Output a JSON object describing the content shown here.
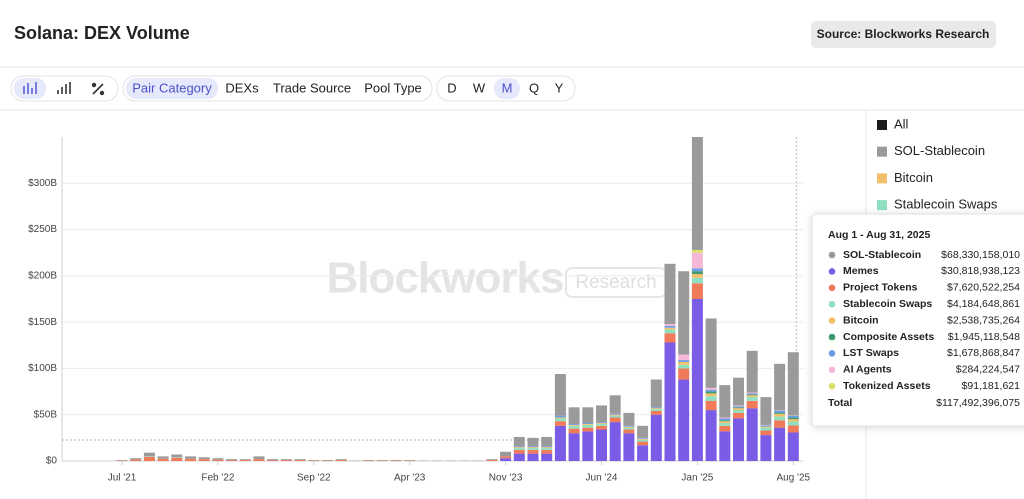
{
  "header": {
    "title": "Solana: DEX Volume",
    "source": "Source: Blockworks Research"
  },
  "toolbar": {
    "groupings": [
      "Pair Category",
      "DEXs",
      "Trade Source",
      "Pool Type"
    ],
    "active_grouping": "Pair Category",
    "periods": [
      "D",
      "W",
      "M",
      "Q",
      "Y"
    ],
    "active_period": "M"
  },
  "chart_data": {
    "type": "bar",
    "stacked": true,
    "categories": [
      "Jul '21",
      null,
      null,
      null,
      null,
      null,
      null,
      "Feb '22",
      null,
      null,
      null,
      null,
      null,
      null,
      "Sep '22",
      null,
      null,
      null,
      null,
      null,
      null,
      "Apr '23",
      null,
      null,
      null,
      null,
      null,
      null,
      "Nov '23",
      null,
      null,
      null,
      null,
      null,
      null,
      "Jun '24",
      null,
      null,
      null,
      null,
      null,
      null,
      "Jan '25",
      null,
      null,
      null,
      null,
      null,
      null,
      "Aug '25"
    ],
    "ylim": [
      0,
      350
    ],
    "yticks": [
      {
        "value": 0,
        "label": "$0"
      },
      {
        "value": 50,
        "label": "$50B"
      },
      {
        "value": 100,
        "label": "$100B"
      },
      {
        "value": 150,
        "label": "$150B"
      },
      {
        "value": 200,
        "label": "$200B"
      },
      {
        "value": 250,
        "label": "$250B"
      },
      {
        "value": 300,
        "label": "$300B"
      }
    ],
    "grid": true,
    "series": [
      {
        "name": "SOL-Stablecoin",
        "color": "#9a9a9a",
        "values": [
          0.5,
          1.5,
          4,
          2.5,
          3,
          2.5,
          2,
          1.5,
          1,
          1,
          3,
          1,
          1,
          1,
          0.5,
          0.5,
          1,
          0.3,
          0.5,
          0.5,
          0.5,
          0.5,
          0.3,
          0.3,
          0.3,
          0.3,
          0.3,
          1,
          5,
          10,
          9,
          10,
          45,
          18,
          17,
          18,
          20,
          14,
          13,
          30,
          65,
          90,
          122,
          75,
          35,
          30,
          45,
          30,
          50,
          68.33015801
        ]
      },
      {
        "name": "Memes",
        "color": "#7b5ce6",
        "values": [
          0,
          0,
          0,
          0,
          0,
          0,
          0,
          0,
          0,
          0,
          0,
          0,
          0,
          0,
          0,
          0,
          0,
          0,
          0,
          0,
          0,
          0,
          0,
          0,
          0,
          0,
          0,
          0,
          3,
          8,
          8,
          8,
          38,
          30,
          32,
          34,
          42,
          30,
          17,
          50,
          128,
          88,
          175,
          55,
          32,
          46,
          57,
          28,
          36,
          30.818938123
        ]
      },
      {
        "name": "Project Tokens",
        "color": "#f07a5a",
        "values": [
          0.5,
          1.5,
          4.5,
          2.5,
          3.5,
          2.5,
          2,
          1.5,
          1,
          1,
          2,
          1,
          1,
          1,
          0.5,
          0.5,
          1,
          0.2,
          0.5,
          0.5,
          0.5,
          0.5,
          0.2,
          0.2,
          0.2,
          0.2,
          0.2,
          1,
          2,
          4,
          4,
          4,
          5,
          5,
          4,
          4,
          5,
          4,
          4,
          4,
          10,
          12,
          17,
          10,
          6,
          6,
          8,
          5,
          8,
          7.620522254
        ]
      },
      {
        "name": "Stablecoin Swaps",
        "color": "#8fe0c0",
        "values": [
          0,
          0,
          0.5,
          0,
          0.5,
          0,
          0,
          0,
          0,
          0,
          0,
          0,
          0,
          0,
          0,
          0,
          0,
          0,
          0,
          0,
          0,
          0,
          0,
          0,
          0,
          0,
          0,
          0,
          0,
          2,
          2,
          2,
          3,
          3,
          3,
          2,
          2,
          2,
          2,
          2,
          4,
          4,
          6,
          5,
          3,
          3,
          4,
          3,
          4,
          4.184648861
        ]
      },
      {
        "name": "Bitcoin",
        "color": "#f2c06a",
        "values": [
          0,
          0,
          0,
          0,
          0,
          0,
          0,
          0,
          0,
          0,
          0,
          0,
          0,
          0,
          0,
          0,
          0,
          0,
          0,
          0,
          0,
          0,
          0,
          0,
          0,
          0,
          0,
          0,
          0,
          1,
          1,
          1,
          1,
          1,
          1,
          1,
          1,
          1,
          1,
          1,
          2,
          3,
          4,
          3,
          2,
          2,
          2,
          1,
          3,
          2.538735264
        ]
      },
      {
        "name": "Composite Assets",
        "color": "#3f9a6f",
        "values": [
          0,
          0,
          0,
          0,
          0,
          0,
          0,
          0,
          0,
          0,
          0,
          0,
          0,
          0,
          0,
          0,
          0,
          0,
          0,
          0,
          0,
          0,
          0,
          0,
          0,
          0,
          0,
          0,
          0,
          0,
          0,
          0,
          0,
          0,
          0,
          0,
          0,
          0,
          0,
          0,
          0,
          0,
          3,
          2,
          1,
          1,
          1,
          0.5,
          1.5,
          1.945118548
        ]
      },
      {
        "name": "LST Swaps",
        "color": "#6b9de8",
        "values": [
          0,
          0,
          0,
          0,
          0,
          0,
          0,
          0,
          0,
          0,
          0,
          0,
          0,
          0,
          0,
          0,
          0,
          0,
          0,
          0,
          0,
          0,
          0,
          0,
          0,
          0,
          0,
          0,
          0,
          1,
          1,
          1,
          2,
          1,
          1,
          1,
          1,
          1,
          1,
          1,
          2,
          2,
          3,
          2,
          2,
          1,
          1,
          1,
          2,
          1.678868847
        ]
      },
      {
        "name": "AI Agents",
        "color": "#f5b8d8",
        "values": [
          0,
          0,
          0,
          0,
          0,
          0,
          0,
          0,
          0,
          0,
          0,
          0,
          0,
          0,
          0,
          0,
          0,
          0,
          0,
          0,
          0,
          0,
          0,
          0,
          0,
          0,
          0,
          0,
          0,
          0,
          0,
          0,
          0,
          0,
          0,
          0,
          0,
          0,
          0,
          0,
          2,
          6,
          17,
          2,
          1,
          1,
          1,
          0.5,
          0.5,
          0.284224547
        ]
      },
      {
        "name": "Tokenized Assets",
        "color": "#d8e06a",
        "values": [
          0,
          0,
          0,
          0,
          0,
          0,
          0,
          0,
          0,
          0,
          0,
          0,
          0,
          0,
          0,
          0,
          0,
          0,
          0,
          0,
          0,
          0,
          0,
          0,
          0,
          0,
          0,
          0,
          0,
          0,
          0,
          0,
          0,
          0,
          0,
          0,
          0,
          0,
          0,
          0,
          0,
          0,
          3,
          0,
          0,
          0,
          0,
          0,
          0,
          0.091181621
        ]
      }
    ],
    "legend_items": [
      {
        "label": "All",
        "color": "#1a1a1a"
      },
      {
        "label": "SOL-Stablecoin",
        "color": "#9a9a9a"
      },
      {
        "label": "Bitcoin",
        "color": "#f2c06a"
      },
      {
        "label": "Stablecoin Swaps",
        "color": "#8fe0c0"
      }
    ],
    "watermark": {
      "brand": "Blockworks",
      "suffix": "Research"
    },
    "tooltip": {
      "title": "Aug 1 - Aug 31, 2025",
      "value_labels": [
        "$68,330,158,010",
        "$30,818,938,123",
        "$7,620,522,254",
        "$4,184,648,861",
        "$2,538,735,264",
        "$1,945,118,548",
        "$1,678,868,847",
        "$284,224,547",
        "$91,181,621"
      ],
      "total_name": "Total",
      "total": {
        "value": 117.492396075,
        "label": "$117,492,396,075"
      }
    }
  }
}
